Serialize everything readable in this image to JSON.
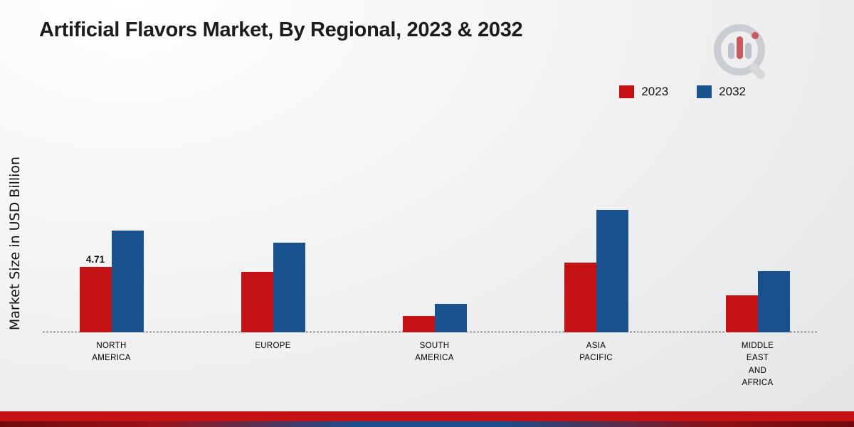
{
  "title": "Artificial Flavors Market, By Regional, 2023 & 2032",
  "y_axis_label": "Market Size in USD Billion",
  "legend": {
    "items": [
      {
        "label": "2023",
        "color": "#c41114"
      },
      {
        "label": "2032",
        "color": "#19518f"
      }
    ]
  },
  "colors": {
    "series_2023": "#c41114",
    "series_2032": "#19518f",
    "footer_band": "#c41114",
    "baseline": "#3c3c3c"
  },
  "chart_data": {
    "type": "bar",
    "title": "Artificial Flavors Market, By Regional, 2023 & 2032",
    "ylabel": "Market Size in USD Billion",
    "ylim": [
      0,
      10
    ],
    "gridlines": false,
    "legend_position": "top-right",
    "baseline_style": "dashed",
    "categories": [
      "NORTH AMERICA",
      "EUROPE",
      "SOUTH AMERICA",
      "ASIA PACIFIC",
      "MIDDLE EAST AND AFRICA"
    ],
    "category_label_lines": [
      [
        "NORTH",
        "AMERICA"
      ],
      [
        "EUROPE"
      ],
      [
        "SOUTH",
        "AMERICA"
      ],
      [
        "ASIA",
        "PACIFIC"
      ],
      [
        "MIDDLE",
        "EAST",
        "AND",
        "AFRICA"
      ]
    ],
    "series": [
      {
        "name": "2023",
        "color": "#c41114",
        "values": [
          4.71,
          4.35,
          1.2,
          5.0,
          2.65
        ]
      },
      {
        "name": "2032",
        "color": "#19518f",
        "values": [
          7.35,
          6.45,
          2.05,
          8.8,
          4.4
        ]
      }
    ],
    "annotations": [
      {
        "text": "4.71",
        "category_index": 0,
        "series_index": 0
      }
    ]
  }
}
